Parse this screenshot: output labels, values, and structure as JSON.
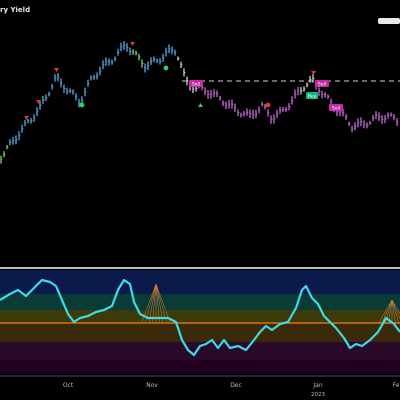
{
  "chart": {
    "title": "ry Yield",
    "signal_labels": [
      "Sell",
      "Sell",
      "Buy",
      "Sell"
    ],
    "x_axis": {
      "labels": [
        "Oct",
        "Nov",
        "Dec",
        "Jan",
        "Fe"
      ],
      "year_label": "2023"
    }
  },
  "colors": {
    "background": "#000000",
    "bull_bar": "#5aa6e0",
    "bear_bar": "#c66ad9",
    "neutral_bar": "#d5d5d5",
    "green_bar": "#7cd86e",
    "sell_marker": "#e23434",
    "buy_marker": "#23d36a",
    "signal_label_bg": "#c72aa8",
    "buy_label_bg": "#10b983",
    "oscillator_line": "#3fd9ea",
    "baseline": "#ff7a00"
  },
  "icons": [
    "triangle-down-marker",
    "triangle-up-marker",
    "dot-marker"
  ]
}
